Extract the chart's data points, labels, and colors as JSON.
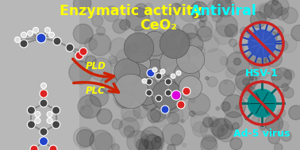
{
  "title_enzymatic": "Enzymatic activity",
  "title_antiviral": "Antiviral",
  "title_ceo2": "CeO₂",
  "title_enzymatic_color": "#ffff00",
  "title_antiviral_color": "#00ffff",
  "title_ceo2_color": "#ffff00",
  "pld_label": "PLD",
  "plc_label": "PLC",
  "pld_color": "#ffff00",
  "plc_color": "#ffff00",
  "arrow_color": "#cc2200",
  "hsv_label": "HSV-1",
  "ad5_label": "Ad-5 virus",
  "virus_label_color": "#00ffff",
  "bg_light": "#c8c8c8",
  "bg_dark": "#888888",
  "atom_gray": "#444444",
  "atom_white": "#dddddd",
  "atom_blue": "#2244cc",
  "atom_red": "#dd2222",
  "atom_magenta": "#dd00dd",
  "virus1_color": "#3355bb",
  "virus2_color": "#008888",
  "no_circle_color": "#cc2222"
}
